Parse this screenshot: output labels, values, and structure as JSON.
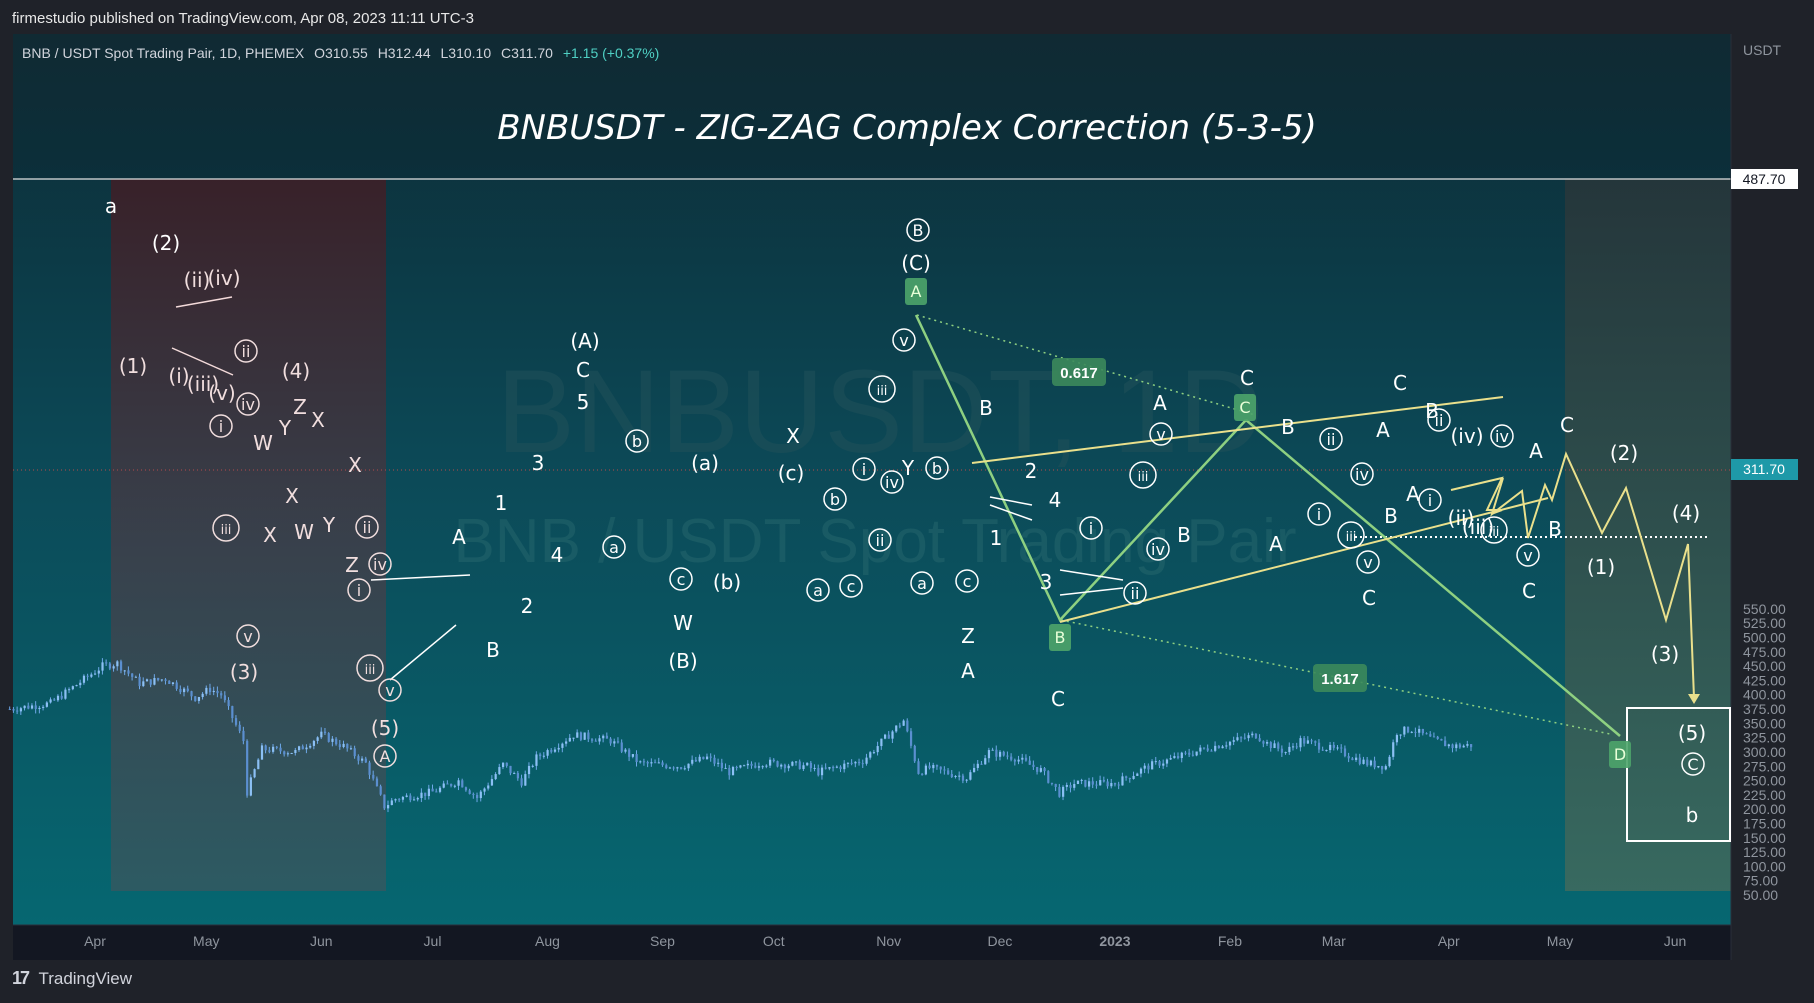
{
  "header": {
    "publisher_line": "firmestudio published on TradingView.com, Apr 08, 2023 11:11 UTC-3"
  },
  "symbol": {
    "name": "BNB / USDT Spot Trading Pair, 1D, PHEMEX",
    "open": "O310.55",
    "high": "H312.44",
    "low": "L310.10",
    "close": "C311.70",
    "change": "+1.15 (+0.37%)"
  },
  "footer": {
    "brand": "TradingView",
    "logo_mark": "17"
  },
  "watermark": {
    "line1": "BNBUSDT, 1D",
    "line2": "BNB / USDT Spot Trading Pair"
  },
  "colors": {
    "background": "#131722",
    "candles": "#6ea8e8",
    "wave_lines": "#8ed081",
    "trend_lines": "#eae08c",
    "price_tag": "#1e99a8",
    "fib_box": "#8ed081"
  },
  "chart_data": {
    "type": "candlestick",
    "title": "BNBUSDT - ZIG-ZAG Complex Correction (5-3-5)",
    "y_axis_unit": "USDT",
    "ylim": [
      40,
      575
    ],
    "y_ticks": [
      550,
      525,
      500,
      475,
      450,
      425,
      400,
      375,
      350,
      325,
      300,
      275,
      250,
      225,
      200,
      175,
      150,
      125,
      100,
      75,
      50
    ],
    "x_ticks": [
      "Apr",
      "May",
      "Jun",
      "Jul",
      "Aug",
      "Sep",
      "Oct",
      "Nov",
      "Dec",
      "2023",
      "Feb",
      "Mar",
      "Apr",
      "May",
      "Jun"
    ],
    "x_tick_dates": [
      "2022-04-01",
      "2022-05-01",
      "2022-06-01",
      "2022-07-01",
      "2022-08-01",
      "2022-09-01",
      "2022-10-01",
      "2022-11-01",
      "2022-12-01",
      "2023-01-01",
      "2023-02-01",
      "2023-03-01",
      "2023-04-01",
      "2023-05-01",
      "2023-06-01"
    ],
    "x_range": [
      "2022-03-09",
      "2023-06-26"
    ],
    "last_price": "311.70",
    "level_price": "487.70",
    "fib_labels": [
      "0.617",
      "1.617"
    ],
    "price_path": [
      [
        "2022-03-09",
        375
      ],
      [
        "2022-03-20",
        385
      ],
      [
        "2022-04-03",
        450
      ],
      [
        "2022-04-07",
        455
      ],
      [
        "2022-04-13",
        420
      ],
      [
        "2022-04-20",
        428
      ],
      [
        "2022-04-28",
        395
      ],
      [
        "2022-05-02",
        410
      ],
      [
        "2022-05-05",
        400
      ],
      [
        "2022-05-11",
        320
      ],
      [
        "2022-05-12",
        230
      ],
      [
        "2022-05-16",
        305
      ],
      [
        "2022-05-25",
        300
      ],
      [
        "2022-06-01",
        330
      ],
      [
        "2022-06-07",
        310
      ],
      [
        "2022-06-13",
        280
      ],
      [
        "2022-06-18",
        205
      ],
      [
        "2022-06-21",
        218
      ],
      [
        "2022-07-01",
        230
      ],
      [
        "2022-07-08",
        250
      ],
      [
        "2022-07-13",
        220
      ],
      [
        "2022-07-20",
        278
      ],
      [
        "2022-07-25",
        248
      ],
      [
        "2022-07-29",
        290
      ],
      [
        "2022-08-08",
        330
      ],
      [
        "2022-08-18",
        320
      ],
      [
        "2022-08-26",
        280
      ],
      [
        "2022-09-06",
        275
      ],
      [
        "2022-09-13",
        290
      ],
      [
        "2022-09-19",
        265
      ],
      [
        "2022-09-28",
        282
      ],
      [
        "2022-10-10",
        275
      ],
      [
        "2022-10-13",
        265
      ],
      [
        "2022-10-25",
        285
      ],
      [
        "2022-11-01",
        330
      ],
      [
        "2022-11-05",
        355
      ],
      [
        "2022-11-09",
        265
      ],
      [
        "2022-11-12",
        272
      ],
      [
        "2022-11-22",
        255
      ],
      [
        "2022-11-28",
        300
      ],
      [
        "2022-12-05",
        290
      ],
      [
        "2022-12-12",
        268
      ],
      [
        "2022-12-17",
        228
      ],
      [
        "2022-12-21",
        245
      ],
      [
        "2023-01-01",
        245
      ],
      [
        "2023-01-10",
        275
      ],
      [
        "2023-01-25",
        305
      ],
      [
        "2023-02-08",
        330
      ],
      [
        "2023-02-11",
        315
      ],
      [
        "2023-02-16",
        300
      ],
      [
        "2023-02-20",
        320
      ],
      [
        "2023-03-03",
        300
      ],
      [
        "2023-03-10",
        280
      ],
      [
        "2023-03-15",
        275
      ],
      [
        "2023-03-18",
        335
      ],
      [
        "2023-03-22",
        340
      ],
      [
        "2023-03-28",
        320
      ],
      [
        "2023-04-02",
        310
      ],
      [
        "2023-04-08",
        312
      ]
    ],
    "wave_labels": [
      "a",
      "(2)",
      "(ii)",
      "(iv)",
      "(1)",
      "(i)",
      "(iii)",
      "(v)",
      "(4)",
      "(3)",
      "(5)",
      "W",
      "X",
      "Y",
      "Z",
      "A",
      "B",
      "C",
      "1",
      "2",
      "3",
      "4",
      "5",
      "(A)",
      "(B)",
      "(C)",
      "(a)",
      "(b)",
      "(c)",
      "b"
    ],
    "circled_labels": [
      "i",
      "ii",
      "iii",
      "iv",
      "v",
      "a",
      "b",
      "c",
      "A",
      "B",
      "C"
    ],
    "boxed_labels": [
      "A",
      "B",
      "C",
      "D"
    ]
  }
}
